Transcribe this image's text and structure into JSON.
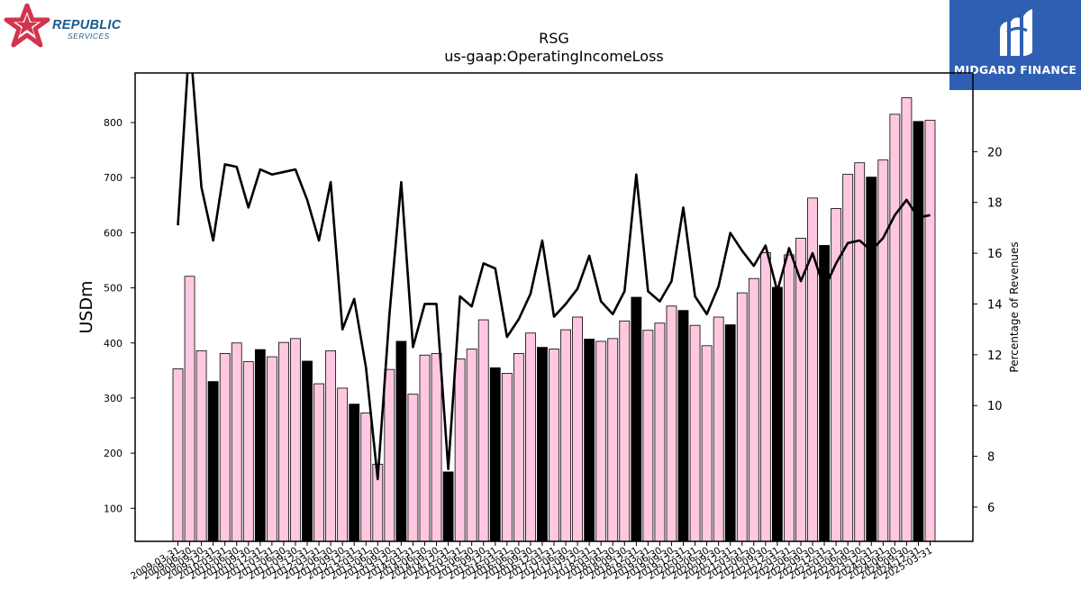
{
  "branding": {
    "left_logo": {
      "name": "REPUBLIC",
      "sub": "SERVICES",
      "star_color": "#d0344f",
      "text_color": "#1a5a8c"
    },
    "right_logo": {
      "name": "MIDGARD FINANCE",
      "bg_color": "#2f5fb3"
    }
  },
  "chart_data": {
    "type": "bar",
    "title": "RSG",
    "subtitle": "us-gaap:OperatingIncomeLoss",
    "ylabel": "USDm",
    "y2label": "Percentage of Revenues",
    "ylim": [
      40,
      890
    ],
    "y2lim": [
      4.65,
      23.1
    ],
    "yticks": [
      100,
      200,
      300,
      400,
      500,
      600,
      700,
      800
    ],
    "y2ticks": [
      6,
      8,
      10,
      12,
      14,
      16,
      18,
      20
    ],
    "grid": false,
    "colors": {
      "bar_quarter": "#ffc8e0",
      "bar_annual": "#000000",
      "bar_edge": "#000000",
      "line": "#000000"
    },
    "categories": [
      "2009-03-31",
      "2009-06-30",
      "2009-09-30",
      "2009-12-31",
      "2010-03-31",
      "2010-06-30",
      "2010-09-30",
      "2010-12-31",
      "2011-03-31",
      "2011-06-30",
      "2011-09-30",
      "2011-12-31",
      "2012-03-31",
      "2012-06-30",
      "2012-09-30",
      "2012-12-31",
      "2013-03-31",
      "2013-06-30",
      "2013-09-30",
      "2013-12-31",
      "2014-03-31",
      "2014-06-30",
      "2014-09-30",
      "2014-12-31",
      "2015-03-31",
      "2015-06-30",
      "2015-09-30",
      "2015-12-31",
      "2016-03-31",
      "2016-06-30",
      "2016-09-30",
      "2016-12-31",
      "2017-03-31",
      "2017-06-30",
      "2017-09-30",
      "2017-12-31",
      "2018-03-31",
      "2018-06-30",
      "2018-09-30",
      "2018-12-31",
      "2019-03-31",
      "2019-06-30",
      "2019-09-30",
      "2019-12-31",
      "2020-03-31",
      "2020-06-30",
      "2020-09-30",
      "2020-12-31",
      "2021-03-31",
      "2021-06-30",
      "2021-09-30",
      "2021-12-31",
      "2022-03-31",
      "2022-06-30",
      "2022-09-30",
      "2022-12-31",
      "2023-03-31",
      "2023-06-30",
      "2023-09-30",
      "2023-12-31",
      "2024-03-31",
      "2024-06-30",
      "2024-09-30",
      "2024-12-31",
      "2025-03-31"
    ],
    "values": [
      353,
      521,
      386,
      330,
      381,
      400,
      366,
      388,
      375,
      401,
      408,
      367,
      326,
      386,
      318,
      289,
      273,
      180,
      352,
      403,
      307,
      378,
      381,
      166,
      371,
      389,
      442,
      355,
      345,
      381,
      418,
      392,
      389,
      424,
      447,
      407,
      403,
      408,
      440,
      483,
      423,
      436,
      467,
      459,
      432,
      395,
      447,
      433,
      491,
      517,
      564,
      501,
      560,
      590,
      663,
      577,
      644,
      706,
      727,
      701,
      732,
      815,
      845,
      802,
      804
    ],
    "annual": [
      false,
      false,
      false,
      true,
      false,
      false,
      false,
      true,
      false,
      false,
      false,
      true,
      false,
      false,
      false,
      true,
      false,
      false,
      false,
      true,
      false,
      false,
      false,
      true,
      false,
      false,
      false,
      true,
      false,
      false,
      false,
      true,
      false,
      false,
      false,
      true,
      false,
      false,
      false,
      true,
      false,
      false,
      false,
      true,
      false,
      false,
      false,
      true,
      false,
      false,
      false,
      true,
      false,
      false,
      false,
      true,
      false,
      false,
      false,
      true,
      false,
      false,
      false,
      true,
      false
    ],
    "percent_of_revenues": [
      17.1,
      24.5,
      18.6,
      16.5,
      19.5,
      19.4,
      17.8,
      19.3,
      19.1,
      19.2,
      19.3,
      18.1,
      16.5,
      18.8,
      13.0,
      14.2,
      11.5,
      7.1,
      13.6,
      18.8,
      12.3,
      14.0,
      14.0,
      7.5,
      14.3,
      13.9,
      15.6,
      15.4,
      12.7,
      13.4,
      14.4,
      16.5,
      13.5,
      14.0,
      14.6,
      15.9,
      14.1,
      13.6,
      14.5,
      19.1,
      14.5,
      14.1,
      14.9,
      17.8,
      14.3,
      13.6,
      14.7,
      16.8,
      16.1,
      15.5,
      16.3,
      14.5,
      16.2,
      14.9,
      16.0,
      14.6,
      15.6,
      16.4,
      16.5,
      16.1,
      16.6,
      17.5,
      18.1,
      17.4,
      17.5
    ]
  }
}
